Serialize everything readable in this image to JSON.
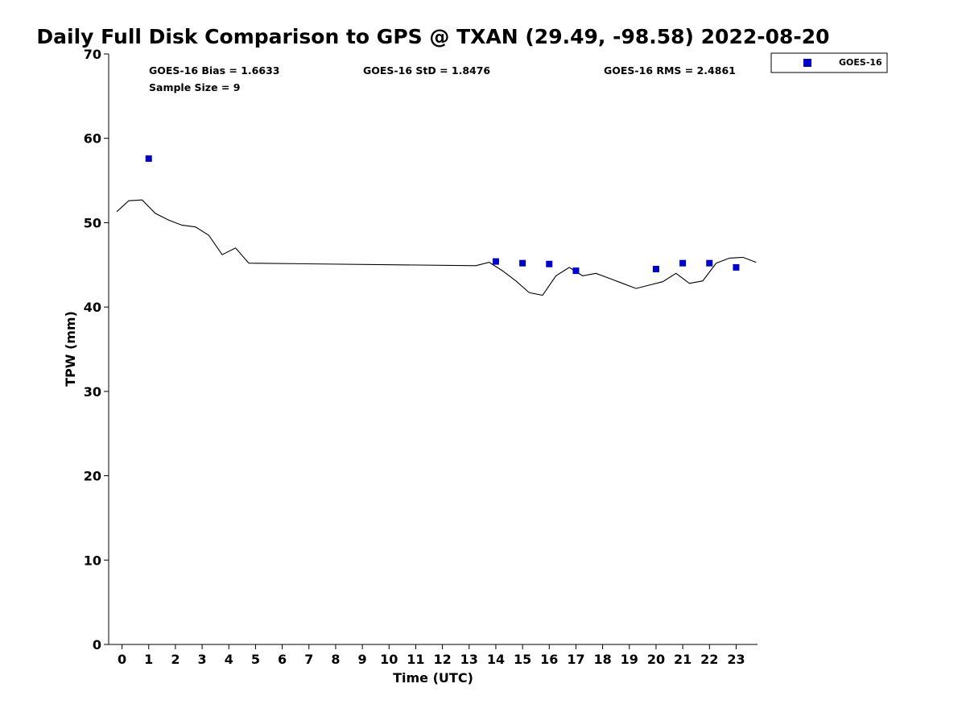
{
  "chart_data": {
    "type": "scatter",
    "title": "Daily Full Disk Comparison to GPS @ TXAN (29.49, -98.58) 2022-08-20",
    "xlabel": "Time (UTC)",
    "ylabel": "TPW (mm)",
    "xlim": [
      -0.5,
      23.8
    ],
    "ylim": [
      0,
      70
    ],
    "xticks": [
      "0",
      "1",
      "2",
      "3",
      "4",
      "5",
      "6",
      "7",
      "8",
      "9",
      "10",
      "11",
      "12",
      "13",
      "14",
      "15",
      "16",
      "17",
      "18",
      "19",
      "20",
      "21",
      "22",
      "23"
    ],
    "yticks": [
      "0",
      "10",
      "20",
      "30",
      "40",
      "50",
      "60",
      "70"
    ],
    "grid": false,
    "legend": {
      "position": "outside-top-right",
      "entries": [
        "GOES-16"
      ]
    },
    "stats": {
      "bias": "GOES-16 Bias = 1.6633",
      "std": "GOES-16 StD = 1.8476",
      "rms": "GOES-16 RMS = 2.4861",
      "sample_size": "Sample Size = 9"
    },
    "gps_line": {
      "color": "#000000",
      "x": [
        -0.2,
        0.25,
        0.75,
        1.25,
        1.75,
        2.25,
        2.75,
        3.25,
        3.75,
        4.25,
        4.75,
        13.25,
        13.75,
        14.25,
        14.75,
        15.25,
        15.75,
        16.25,
        16.75,
        17.25,
        17.75,
        18.25,
        18.75,
        19.25,
        19.75,
        20.25,
        20.75,
        21.25,
        21.75,
        22.25,
        22.75,
        23.25,
        23.75
      ],
      "y": [
        51.3,
        52.6,
        52.7,
        51.1,
        50.3,
        49.7,
        49.5,
        48.5,
        46.2,
        47.0,
        45.2,
        44.9,
        45.3,
        44.3,
        43.1,
        41.7,
        41.4,
        43.7,
        44.7,
        43.7,
        44.0,
        43.4,
        42.8,
        42.2,
        42.6,
        43.0,
        44.0,
        42.8,
        43.1,
        45.2,
        45.8,
        45.9,
        45.3
      ]
    },
    "series": [
      {
        "name": "GOES-16",
        "color": "#0000cc",
        "marker": "square",
        "x": [
          1,
          14,
          15,
          16,
          17,
          20,
          21,
          22,
          23
        ],
        "y": [
          57.6,
          45.4,
          45.2,
          45.1,
          44.3,
          44.5,
          45.2,
          45.2,
          44.7
        ]
      }
    ]
  }
}
